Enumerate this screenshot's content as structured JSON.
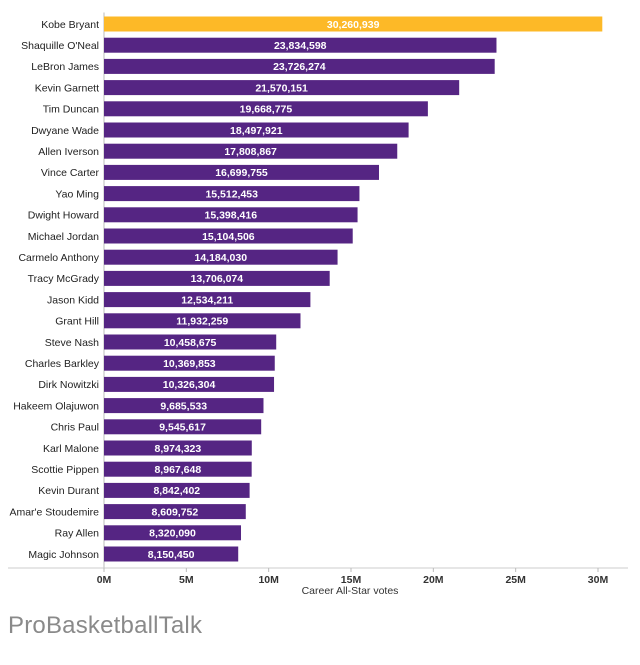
{
  "chart_data": {
    "type": "bar",
    "orientation": "horizontal",
    "title": "",
    "xlabel": "Career All-Star votes",
    "ylabel": "",
    "xlim": [
      0,
      30000000
    ],
    "xticks": [
      {
        "value": 0,
        "label": "0M"
      },
      {
        "value": 5000000,
        "label": "5M"
      },
      {
        "value": 10000000,
        "label": "10M"
      },
      {
        "value": 15000000,
        "label": "15M"
      },
      {
        "value": 20000000,
        "label": "20M"
      },
      {
        "value": 25000000,
        "label": "25M"
      },
      {
        "value": 30000000,
        "label": "30M"
      }
    ],
    "highlight_color": "#FDB927",
    "bar_color": "#552583",
    "bars": [
      {
        "name": "Kobe Bryant",
        "value": 30260939,
        "label": "30,260,939",
        "highlight": true
      },
      {
        "name": "Shaquille O'Neal",
        "value": 23834598,
        "label": "23,834,598"
      },
      {
        "name": "LeBron James",
        "value": 23726274,
        "label": "23,726,274"
      },
      {
        "name": "Kevin Garnett",
        "value": 21570151,
        "label": "21,570,151"
      },
      {
        "name": "Tim Duncan",
        "value": 19668775,
        "label": "19,668,775"
      },
      {
        "name": "Dwyane Wade",
        "value": 18497921,
        "label": "18,497,921"
      },
      {
        "name": "Allen Iverson",
        "value": 17808867,
        "label": "17,808,867"
      },
      {
        "name": "Vince Carter",
        "value": 16699755,
        "label": "16,699,755"
      },
      {
        "name": "Yao Ming",
        "value": 15512453,
        "label": "15,512,453"
      },
      {
        "name": "Dwight Howard",
        "value": 15398416,
        "label": "15,398,416"
      },
      {
        "name": "Michael Jordan",
        "value": 15104506,
        "label": "15,104,506"
      },
      {
        "name": "Carmelo Anthony",
        "value": 14184030,
        "label": "14,184,030"
      },
      {
        "name": "Tracy McGrady",
        "value": 13706074,
        "label": "13,706,074"
      },
      {
        "name": "Jason Kidd",
        "value": 12534211,
        "label": "12,534,211"
      },
      {
        "name": "Grant Hill",
        "value": 11932259,
        "label": "11,932,259"
      },
      {
        "name": "Steve Nash",
        "value": 10458675,
        "label": "10,458,675"
      },
      {
        "name": "Charles Barkley",
        "value": 10369853,
        "label": "10,369,853"
      },
      {
        "name": "Dirk Nowitzki",
        "value": 10326304,
        "label": "10,326,304"
      },
      {
        "name": "Hakeem Olajuwon",
        "value": 9685533,
        "label": "9,685,533"
      },
      {
        "name": "Chris Paul",
        "value": 9545617,
        "label": "9,545,617"
      },
      {
        "name": "Karl Malone",
        "value": 8974323,
        "label": "8,974,323"
      },
      {
        "name": "Scottie Pippen",
        "value": 8967648,
        "label": "8,967,648"
      },
      {
        "name": "Kevin Durant",
        "value": 8842402,
        "label": "8,842,402"
      },
      {
        "name": "Amar'e Stoudemire",
        "value": 8609752,
        "label": "8,609,752"
      },
      {
        "name": "Ray Allen",
        "value": 8320090,
        "label": "8,320,090"
      },
      {
        "name": "Magic Johnson",
        "value": 8150450,
        "label": "8,150,450"
      }
    ]
  },
  "footer": {
    "source": "ProBasketballTalk"
  }
}
